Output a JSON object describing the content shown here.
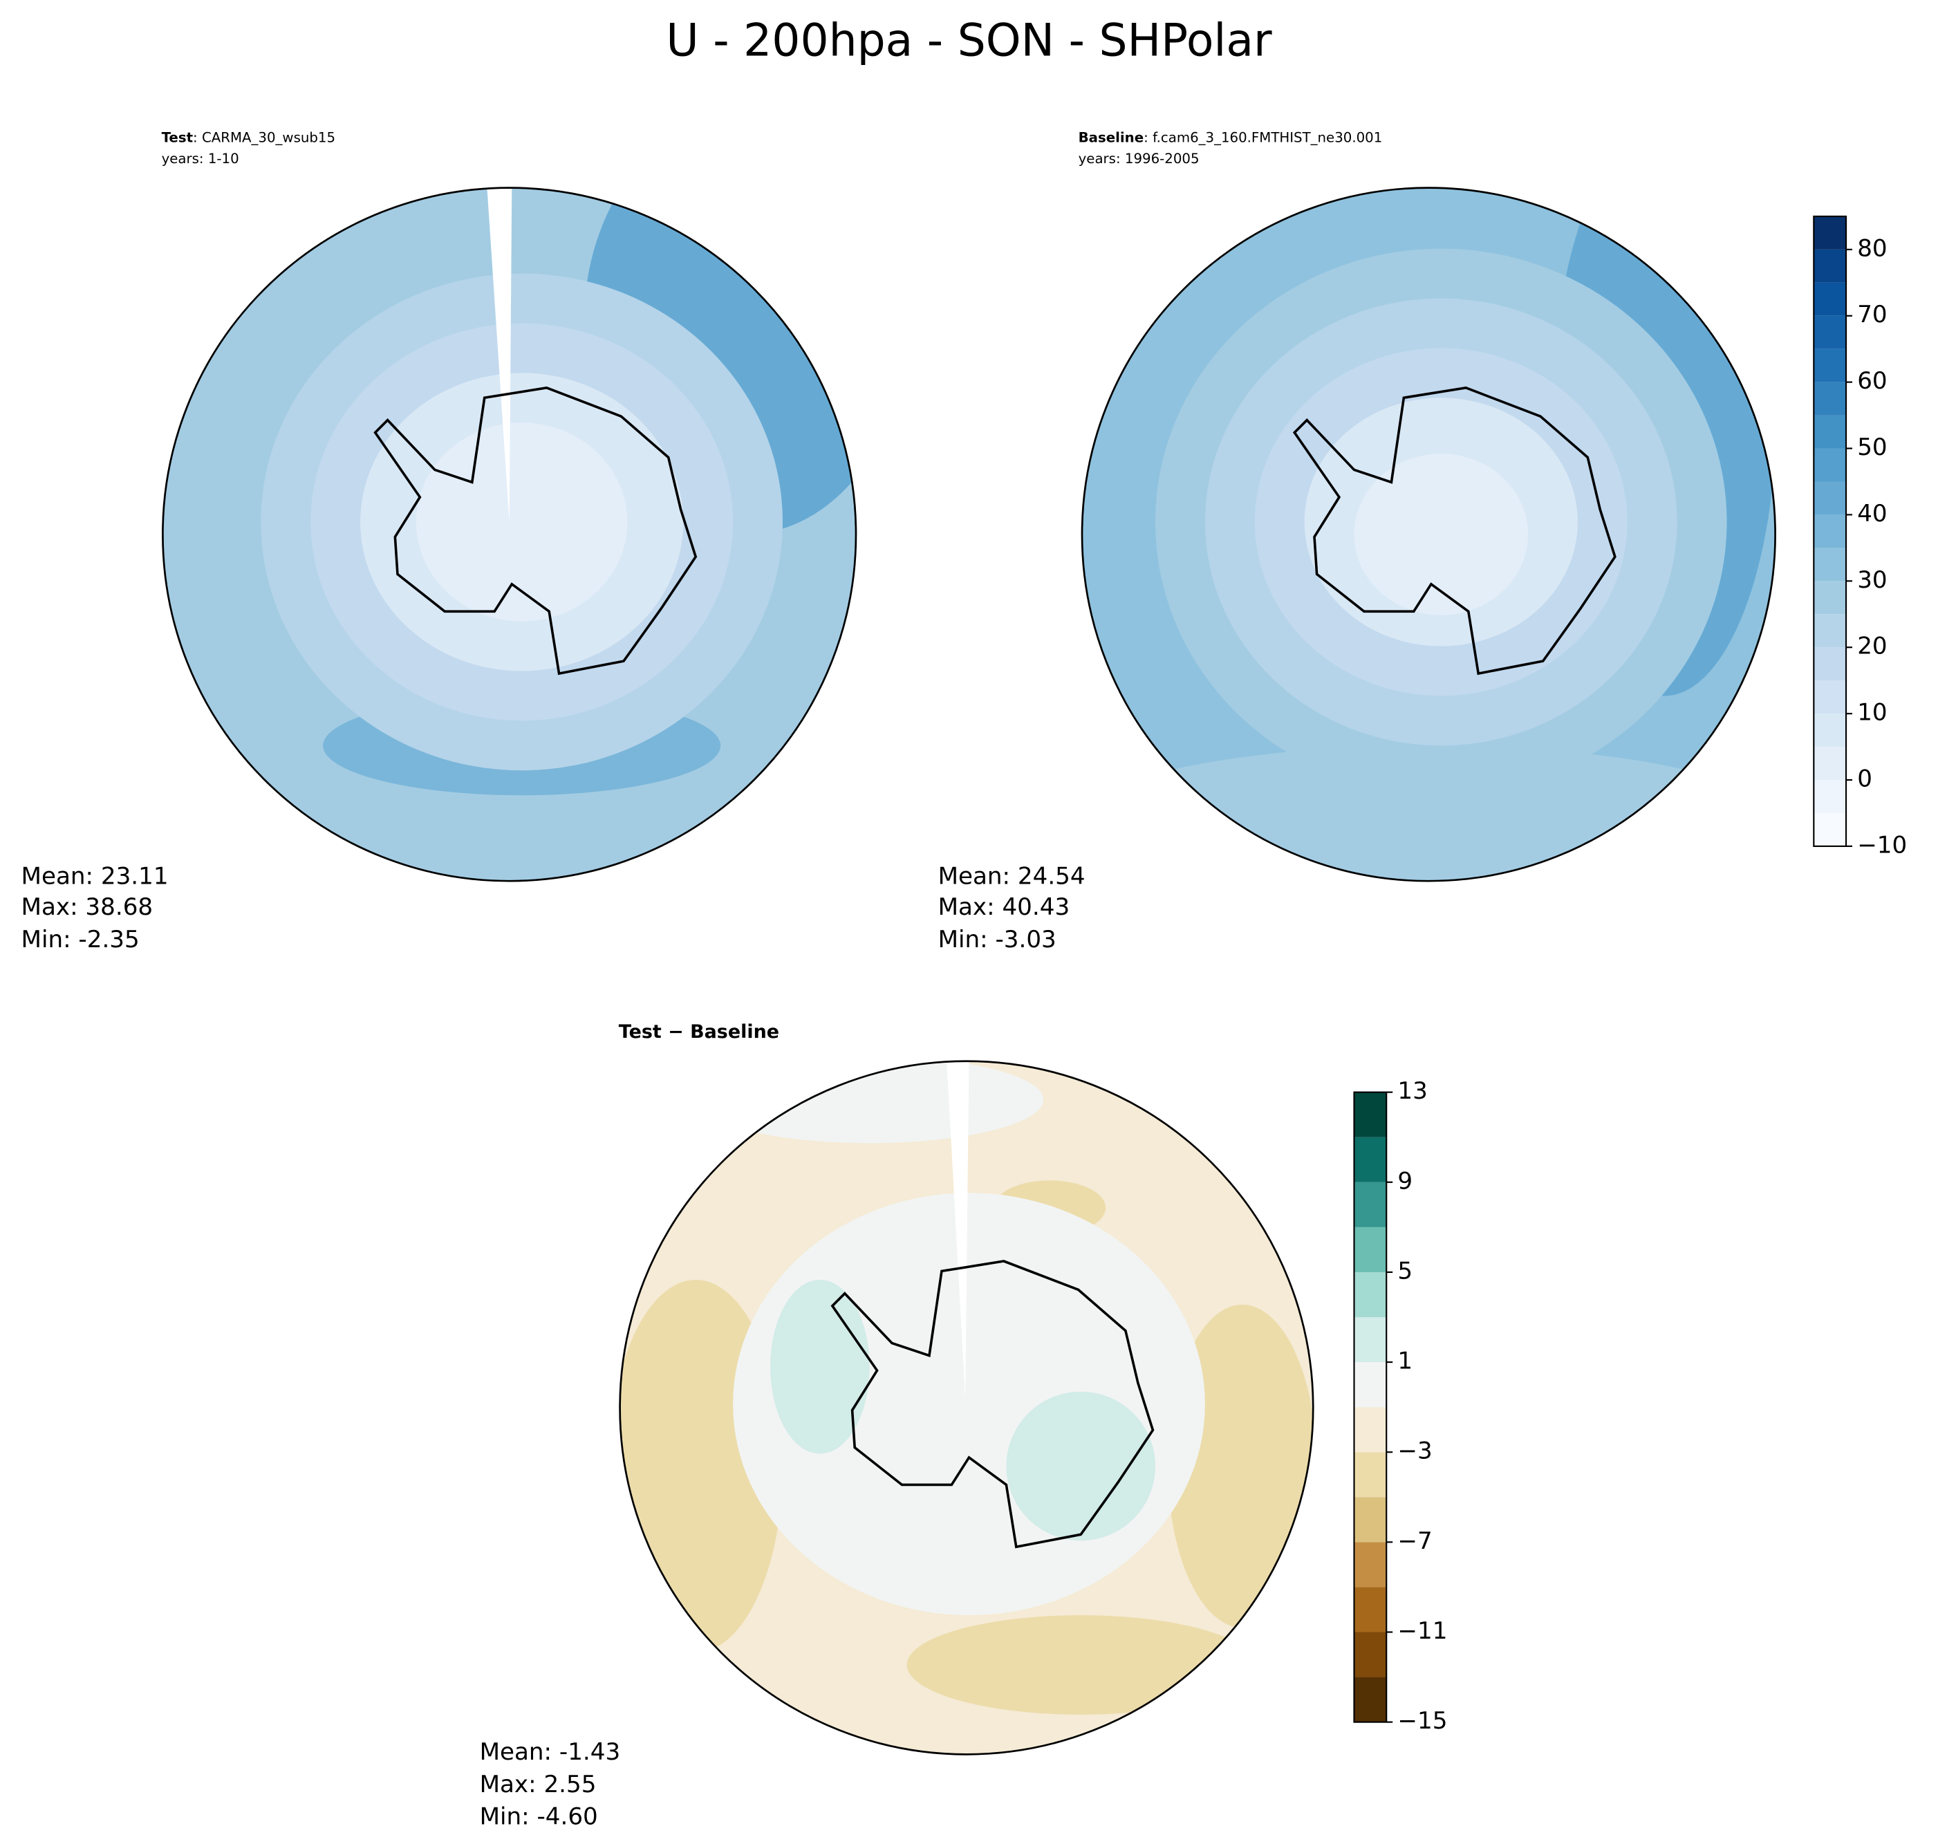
{
  "title": "U - 200hpa - SON - SHPolar",
  "panels": [
    {
      "label_bold": "Test",
      "label": ": CARMA_30_wsub15",
      "years": "years: 1-10",
      "stats": [
        "Mean: 23.11",
        "Max: 38.68",
        "Min: -2.35"
      ]
    },
    {
      "label_bold": "Baseline",
      "label": ": f.cam6_3_160.FMTHIST_ne30.001",
      "years": "years: 1996-2005",
      "stats": [
        "Mean: 24.54",
        "Max: 40.43",
        "Min: -3.03"
      ]
    },
    {
      "label_bold": "Test − Baseline",
      "stats": [
        "Mean: -1.43",
        "Max:  2.55",
        "Min: -4.60"
      ]
    }
  ],
  "colorbars": [
    {
      "ylim": [
        -10,
        85
      ],
      "yticks": [
        {
          "value": -10,
          "label": "−10"
        },
        0,
        10,
        20,
        30,
        40,
        50,
        60,
        70,
        80
      ],
      "levels": [
        -10,
        -5,
        0,
        5,
        10,
        15,
        20,
        25,
        30,
        35,
        40,
        45,
        50,
        55,
        60,
        65,
        70,
        75,
        80,
        85
      ],
      "colors": [
        "#f7fbff",
        "#eef5fc",
        "#e3eef9",
        "#d9e8f5",
        "#cfe1f2",
        "#c2d9ee",
        "#b5d4e9",
        "#a3cce3",
        "#8fc2de",
        "#7ab6d9",
        "#66aad4",
        "#549fcd",
        "#4292c6",
        "#3282be",
        "#2171b5",
        "#1663aa",
        "#0b559f",
        "#08458a",
        "#08306b"
      ]
    },
    {
      "ylim": [
        -15,
        13
      ],
      "yticks": [
        {
          "value": -15,
          "label": "−15"
        },
        {
          "value": -11,
          "label": "−11"
        },
        {
          "value": -7,
          "label": "−7"
        },
        {
          "value": -3,
          "label": "−3"
        },
        1,
        5,
        9,
        13
      ],
      "levels": [
        -15,
        -13,
        -11,
        -9,
        -7,
        -5,
        -3,
        -1,
        1,
        3,
        5,
        7,
        9,
        11,
        13
      ],
      "colors": [
        "#543005",
        "#7f4a0a",
        "#a6691c",
        "#c48f45",
        "#dcc17e",
        "#ecdcaa",
        "#f5ebd6",
        "#f2f4f3",
        "#d2ece8",
        "#a3dad1",
        "#6bbeb1",
        "#35978f",
        "#0d7068",
        "#01473c"
      ]
    }
  ]
}
